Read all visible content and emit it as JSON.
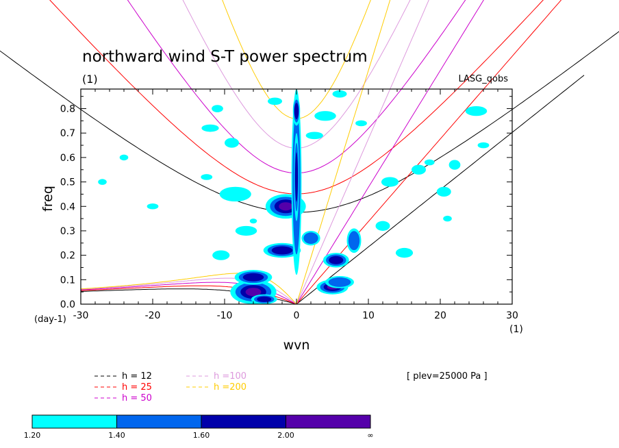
{
  "chart_data": {
    "type": "contour",
    "title": "northward wind S-T power spectrum",
    "subtitle_left": "(1)",
    "subtitle_right": "LASG_qobs",
    "xlabel": "wvn",
    "ylabel": "freq",
    "x_unit_label": "(1)",
    "y_unit_label": "(day-1)",
    "xlim": [
      -30,
      30
    ],
    "ylim": [
      0,
      0.88
    ],
    "x_ticks": [
      -30,
      -20,
      -10,
      0,
      10,
      20,
      30
    ],
    "x_tick_labels": [
      "-30",
      "-20",
      "-10",
      "0",
      "10",
      "20",
      "30"
    ],
    "y_ticks": [
      0.0,
      0.1,
      0.2,
      0.3,
      0.4,
      0.5,
      0.6,
      0.7,
      0.8
    ],
    "y_tick_labels": [
      "0.0",
      "0.1",
      "0.2",
      "0.3",
      "0.4",
      "0.5",
      "0.6",
      "0.7",
      "0.8"
    ],
    "annotation": "[ plev=25000 Pa ]",
    "dispersion_curves": [
      {
        "label": "h = 12",
        "h": 12,
        "color": "#000000"
      },
      {
        "label": "h = 25",
        "h": 25,
        "color": "#ff0000"
      },
      {
        "label": "h = 50",
        "h": 50,
        "color": "#cc00cc"
      },
      {
        "label": "h =100",
        "h": 100,
        "color": "#dd99dd"
      },
      {
        "label": "h =200",
        "h": 200,
        "color": "#ffcc00"
      }
    ],
    "shading": {
      "levels": [
        "1.20",
        "1.40",
        "1.60",
        "2.00",
        "∞"
      ],
      "colors": [
        "#00ffff",
        "#0066ee",
        "#0000aa",
        "#5500aa"
      ]
    },
    "power_regions": [
      {
        "x": -1.5,
        "y": 0.4,
        "rx": 2.8,
        "ry": 0.05,
        "level": 3
      },
      {
        "x": -2,
        "y": 0.22,
        "rx": 2.6,
        "ry": 0.03,
        "level": 2
      },
      {
        "x": -6,
        "y": 0.05,
        "rx": 3.2,
        "ry": 0.05,
        "level": 3
      },
      {
        "x": -6,
        "y": 0.11,
        "rx": 2.6,
        "ry": 0.03,
        "level": 2
      },
      {
        "x": -4.5,
        "y": 0.02,
        "rx": 1.8,
        "ry": 0.02,
        "level": 2
      },
      {
        "x": 0,
        "y": 0.5,
        "rx": 0.7,
        "ry": 0.38,
        "level": 1
      },
      {
        "x": 0,
        "y": 0.52,
        "rx": 0.35,
        "ry": 0.18,
        "level": 2
      },
      {
        "x": 0,
        "y": 0.79,
        "rx": 0.5,
        "ry": 0.06,
        "level": 2
      },
      {
        "x": 2,
        "y": 0.27,
        "rx": 1.3,
        "ry": 0.03,
        "level": 1
      },
      {
        "x": 5,
        "y": 0.07,
        "rx": 2.2,
        "ry": 0.03,
        "level": 3
      },
      {
        "x": 5.5,
        "y": 0.18,
        "rx": 1.8,
        "ry": 0.03,
        "level": 2
      },
      {
        "x": 8,
        "y": 0.26,
        "rx": 1.0,
        "ry": 0.05,
        "level": 1
      },
      {
        "x": 6,
        "y": 0.09,
        "rx": 2.0,
        "ry": 0.025,
        "level": 1
      },
      {
        "x": -12,
        "y": 0.72,
        "rx": 1.2,
        "ry": 0.015,
        "level": 0
      },
      {
        "x": -9,
        "y": 0.66,
        "rx": 1.0,
        "ry": 0.02,
        "level": 0
      },
      {
        "x": -11,
        "y": 0.8,
        "rx": 0.8,
        "ry": 0.015,
        "level": 0
      },
      {
        "x": -8.5,
        "y": 0.45,
        "rx": 2.2,
        "ry": 0.03,
        "level": 0
      },
      {
        "x": -7,
        "y": 0.3,
        "rx": 1.5,
        "ry": 0.02,
        "level": 0
      },
      {
        "x": -10.5,
        "y": 0.2,
        "rx": 1.2,
        "ry": 0.02,
        "level": 0
      },
      {
        "x": -20,
        "y": 0.4,
        "rx": 0.8,
        "ry": 0.012,
        "level": 0
      },
      {
        "x": -27,
        "y": 0.5,
        "rx": 0.6,
        "ry": 0.012,
        "level": 0
      },
      {
        "x": -24,
        "y": 0.6,
        "rx": 0.6,
        "ry": 0.012,
        "level": 0
      },
      {
        "x": -3,
        "y": 0.83,
        "rx": 1.0,
        "ry": 0.015,
        "level": 0
      },
      {
        "x": 4,
        "y": 0.77,
        "rx": 1.5,
        "ry": 0.02,
        "level": 0
      },
      {
        "x": 2.5,
        "y": 0.69,
        "rx": 1.2,
        "ry": 0.015,
        "level": 0
      },
      {
        "x": 6,
        "y": 0.86,
        "rx": 1.0,
        "ry": 0.015,
        "level": 0
      },
      {
        "x": 9,
        "y": 0.74,
        "rx": 0.8,
        "ry": 0.012,
        "level": 0
      },
      {
        "x": 13,
        "y": 0.5,
        "rx": 1.2,
        "ry": 0.02,
        "level": 0
      },
      {
        "x": 12,
        "y": 0.32,
        "rx": 1.0,
        "ry": 0.02,
        "level": 0
      },
      {
        "x": 15,
        "y": 0.21,
        "rx": 1.2,
        "ry": 0.02,
        "level": 0
      },
      {
        "x": 17,
        "y": 0.55,
        "rx": 1.0,
        "ry": 0.02,
        "level": 0
      },
      {
        "x": 20.5,
        "y": 0.46,
        "rx": 1.0,
        "ry": 0.02,
        "level": 0
      },
      {
        "x": 22,
        "y": 0.57,
        "rx": 0.8,
        "ry": 0.02,
        "level": 0
      },
      {
        "x": 25,
        "y": 0.79,
        "rx": 1.5,
        "ry": 0.02,
        "level": 0
      },
      {
        "x": 21,
        "y": 0.35,
        "rx": 0.6,
        "ry": 0.012,
        "level": 0
      },
      {
        "x": 18.5,
        "y": 0.58,
        "rx": 0.7,
        "ry": 0.012,
        "level": 0
      },
      {
        "x": -6,
        "y": 0.34,
        "rx": 0.5,
        "ry": 0.01,
        "level": 0
      },
      {
        "x": -12.5,
        "y": 0.52,
        "rx": 0.8,
        "ry": 0.012,
        "level": 0
      },
      {
        "x": 26,
        "y": 0.65,
        "rx": 0.8,
        "ry": 0.012,
        "level": 0
      }
    ]
  }
}
